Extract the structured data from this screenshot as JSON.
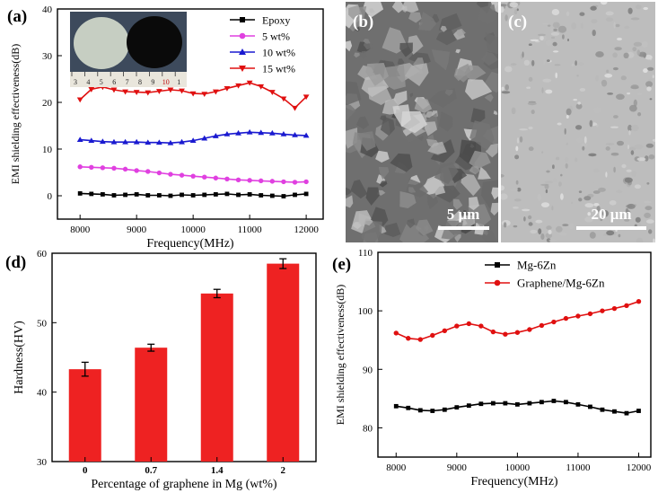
{
  "figure": {
    "panel_labels": [
      "(a)",
      "(b)",
      "(c)",
      "(d)",
      "(e)"
    ],
    "micrograph_b": {
      "scale_bar": "5 μm",
      "tone": "#6f6f6f"
    },
    "micrograph_c": {
      "scale_bar": "20 μm",
      "tone": "#bdbdbd"
    }
  },
  "chart_data": [
    {
      "panel": "(a)",
      "type": "line",
      "xlabel": "Frequency(MHz)",
      "ylabel": "EMI shielding effectiveness(dB)",
      "xlim": [
        7600,
        12300
      ],
      "ylim": [
        -5,
        40
      ],
      "xticks": [
        8000,
        9000,
        10000,
        11000,
        12000
      ],
      "yticks": [
        0,
        10,
        20,
        30,
        40
      ],
      "legend_position": "top-right",
      "inset_photo": {
        "ruler_numbers": [
          "3",
          "4",
          "5",
          "6",
          "7",
          "8",
          "9",
          "10",
          "1"
        ]
      },
      "x": [
        8000,
        8200,
        8400,
        8600,
        8800,
        9000,
        9200,
        9400,
        9600,
        9800,
        10000,
        10200,
        10400,
        10600,
        10800,
        11000,
        11200,
        11400,
        11600,
        11800,
        12000
      ],
      "series": [
        {
          "name": "Epoxy",
          "color": "#000000",
          "marker": "square",
          "values": [
            0.5,
            0.4,
            0.3,
            0.1,
            0.2,
            0.3,
            0.1,
            0.1,
            0.0,
            0.2,
            0.1,
            0.2,
            0.3,
            0.4,
            0.2,
            0.3,
            0.1,
            0.0,
            -0.1,
            0.2,
            0.4
          ]
        },
        {
          "name": "5 wt%",
          "color": "#e040e0",
          "marker": "circle",
          "values": [
            6.2,
            6.1,
            6.0,
            5.9,
            5.7,
            5.4,
            5.2,
            4.9,
            4.6,
            4.4,
            4.2,
            4.0,
            3.8,
            3.6,
            3.4,
            3.3,
            3.2,
            3.1,
            3.0,
            2.9,
            3.0
          ]
        },
        {
          "name": "10 wt%",
          "color": "#1a1ad0",
          "marker": "triangle",
          "values": [
            12.0,
            11.8,
            11.6,
            11.5,
            11.5,
            11.5,
            11.4,
            11.4,
            11.3,
            11.5,
            11.8,
            12.3,
            12.8,
            13.2,
            13.4,
            13.6,
            13.5,
            13.4,
            13.2,
            13.0,
            12.9
          ]
        },
        {
          "name": "15 wt%",
          "color": "#e01010",
          "marker": "down-triangle",
          "values": [
            20.6,
            22.8,
            23.3,
            22.7,
            22.3,
            22.2,
            22.1,
            22.4,
            22.7,
            22.5,
            21.9,
            21.8,
            22.3,
            23.0,
            23.6,
            24.2,
            23.4,
            22.2,
            20.8,
            18.8,
            21.2
          ]
        }
      ]
    },
    {
      "panel": "(d)",
      "type": "bar",
      "xlabel": "Percentage of graphene in Mg (wt%)",
      "ylabel": "Hardness(HV)",
      "categories": [
        "0",
        "0.7",
        "1.4",
        "2"
      ],
      "values": [
        43.3,
        46.4,
        54.2,
        58.5
      ],
      "errors": [
        1.0,
        0.5,
        0.6,
        0.7
      ],
      "ylim": [
        30,
        60
      ],
      "yticks": [
        30,
        40,
        50,
        60
      ],
      "bar_color": "#ee2222"
    },
    {
      "panel": "(e)",
      "type": "line",
      "xlabel": "Frequency(MHz)",
      "ylabel": "EMI shielding effectiveness(dB)",
      "xlim": [
        7700,
        12200
      ],
      "ylim": [
        75,
        110
      ],
      "xticks": [
        8000,
        9000,
        10000,
        11000,
        12000
      ],
      "yticks": [
        80,
        90,
        100,
        110
      ],
      "legend_position": "top-right",
      "x": [
        8000,
        8200,
        8400,
        8600,
        8800,
        9000,
        9200,
        9400,
        9600,
        9800,
        10000,
        10200,
        10400,
        10600,
        10800,
        11000,
        11200,
        11400,
        11600,
        11800,
        12000
      ],
      "series": [
        {
          "name": "Mg-6Zn",
          "color": "#000000",
          "marker": "square",
          "values": [
            83.7,
            83.4,
            83.0,
            82.9,
            83.1,
            83.5,
            83.8,
            84.1,
            84.2,
            84.2,
            84.0,
            84.2,
            84.4,
            84.6,
            84.4,
            84.0,
            83.6,
            83.1,
            82.8,
            82.5,
            82.9
          ]
        },
        {
          "name": "Graphene/Mg-6Zn",
          "color": "#e01010",
          "marker": "circle",
          "values": [
            96.2,
            95.3,
            95.1,
            95.8,
            96.6,
            97.4,
            97.8,
            97.4,
            96.4,
            96.0,
            96.3,
            96.8,
            97.5,
            98.1,
            98.7,
            99.1,
            99.5,
            100.0,
            100.4,
            100.9,
            101.6
          ]
        }
      ]
    }
  ]
}
